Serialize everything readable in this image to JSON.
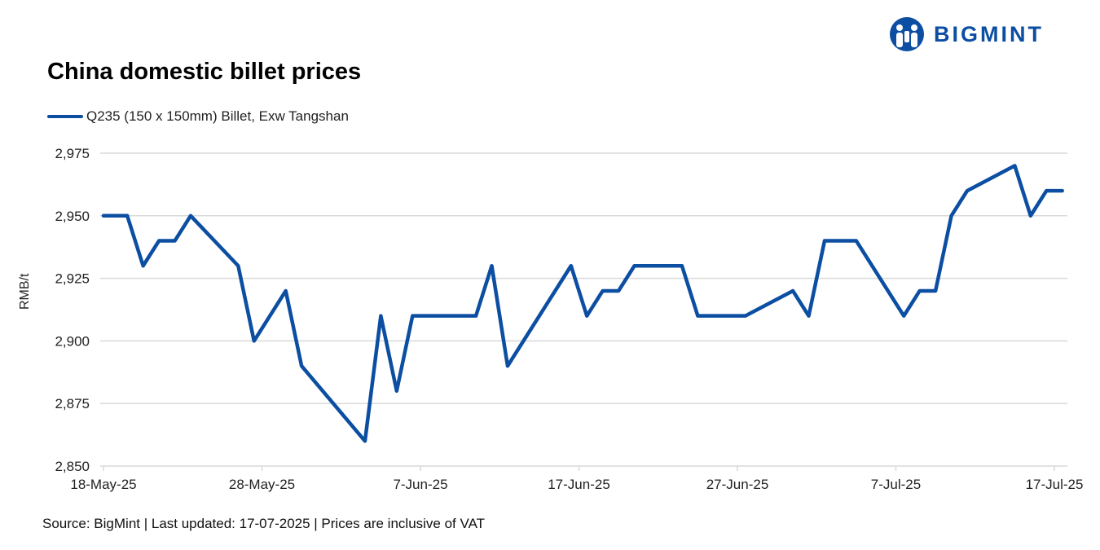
{
  "logo": {
    "text": "BIGMINT",
    "color": "#0b4ea2"
  },
  "chart_data": {
    "type": "line",
    "title": "China domestic billet prices",
    "ylabel": "RMB/t",
    "xlabel": "",
    "ylim": [
      2850,
      2975
    ],
    "yticks": [
      "2,850",
      "2,875",
      "2,900",
      "2,925",
      "2,950",
      "2,975"
    ],
    "ytick_values": [
      2850,
      2875,
      2900,
      2925,
      2950,
      2975
    ],
    "xticks": [
      "18-May-25",
      "28-May-25",
      "7-Jun-25",
      "17-Jun-25",
      "27-Jun-25",
      "7-Jul-25",
      "17-Jul-25"
    ],
    "xtick_dates": [
      "2025-05-18",
      "2025-05-28",
      "2025-06-07",
      "2025-06-17",
      "2025-06-27",
      "2025-07-07",
      "2025-07-17"
    ],
    "xlim": [
      "2025-05-18",
      "2025-07-17"
    ],
    "grid": true,
    "legend_position": "top-left",
    "series": [
      {
        "name": "Q235 (150 x 150mm) Billet, Exw Tangshan",
        "color": "#0b4ea2",
        "points": [
          [
            "2025-05-18",
            2950
          ],
          [
            "2025-05-19",
            2950
          ],
          [
            "2025-05-20",
            2930
          ],
          [
            "2025-05-21",
            2940
          ],
          [
            "2025-05-22",
            2940
          ],
          [
            "2025-05-23",
            2950
          ],
          [
            "2025-05-26",
            2930
          ],
          [
            "2025-05-27",
            2900
          ],
          [
            "2025-05-29",
            2920
          ],
          [
            "2025-05-30",
            2890
          ],
          [
            "2025-06-03",
            2860
          ],
          [
            "2025-06-04",
            2910
          ],
          [
            "2025-06-05",
            2880
          ],
          [
            "2025-06-06",
            2910
          ],
          [
            "2025-06-10",
            2910
          ],
          [
            "2025-06-11",
            2930
          ],
          [
            "2025-06-12",
            2890
          ],
          [
            "2025-06-16",
            2930
          ],
          [
            "2025-06-17",
            2910
          ],
          [
            "2025-06-18",
            2920
          ],
          [
            "2025-06-19",
            2920
          ],
          [
            "2025-06-20",
            2930
          ],
          [
            "2025-06-23",
            2930
          ],
          [
            "2025-06-24",
            2910
          ],
          [
            "2025-06-27",
            2910
          ],
          [
            "2025-06-30",
            2920
          ],
          [
            "2025-07-01",
            2910
          ],
          [
            "2025-07-02",
            2940
          ],
          [
            "2025-07-04",
            2940
          ],
          [
            "2025-07-07",
            2910
          ],
          [
            "2025-07-08",
            2920
          ],
          [
            "2025-07-09",
            2920
          ],
          [
            "2025-07-10",
            2950
          ],
          [
            "2025-07-11",
            2960
          ],
          [
            "2025-07-14",
            2970
          ],
          [
            "2025-07-15",
            2950
          ],
          [
            "2025-07-16",
            2960
          ],
          [
            "2025-07-17",
            2960
          ]
        ]
      }
    ]
  },
  "footer": {
    "source": "Source: BigMint | Last updated: 17-07-2025 | Prices are inclusive of VAT"
  }
}
